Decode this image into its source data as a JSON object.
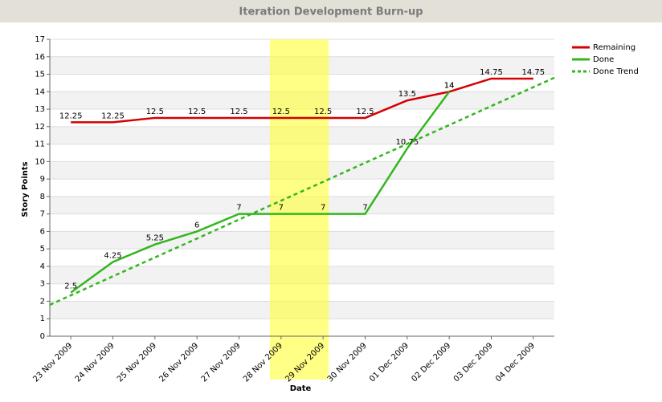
{
  "chart_data": {
    "type": "line",
    "title": "Iteration Development Burn-up",
    "x_label": "Date",
    "y_label": "Story Points",
    "categories": [
      "23 Nov 2009",
      "24 Nov 2009",
      "25 Nov 2009",
      "26 Nov 2009",
      "27 Nov 2009",
      "28 Nov 2009",
      "29 Nov 2009",
      "30 Nov 2009",
      "01 Dec 2009",
      "02 Dec 2009",
      "03 Dec 2009",
      "04 Dec 2009"
    ],
    "series": [
      {
        "name": "Remaining",
        "color": "#d40000",
        "dashed": false,
        "labels": true,
        "values": [
          12.25,
          12.25,
          12.5,
          12.5,
          12.5,
          12.5,
          12.5,
          12.5,
          13.5,
          14,
          14.75,
          14.75
        ]
      },
      {
        "name": "Done",
        "color": "#33b61e",
        "dashed": false,
        "labels": true,
        "values": [
          2.5,
          4.25,
          5.25,
          6,
          7,
          7,
          7,
          7,
          10.75,
          14,
          null,
          null
        ]
      },
      {
        "name": "Done Trend",
        "color": "#33b61e",
        "dashed": true,
        "labels": false,
        "values": [
          2.34,
          3.43,
          4.51,
          5.59,
          6.68,
          7.76,
          8.84,
          9.93,
          11.01,
          12.09,
          13.18,
          14.26
        ]
      }
    ],
    "highlight": [
      "28 Nov 2009",
      "29 Nov 2009"
    ],
    "ylim": [
      0,
      17
    ],
    "yticks": [
      0,
      1,
      2,
      3,
      4,
      5,
      6,
      7,
      8,
      9,
      10,
      11,
      12,
      13,
      14,
      15,
      16,
      17
    ],
    "grid": true,
    "legend": "top-right"
  }
}
